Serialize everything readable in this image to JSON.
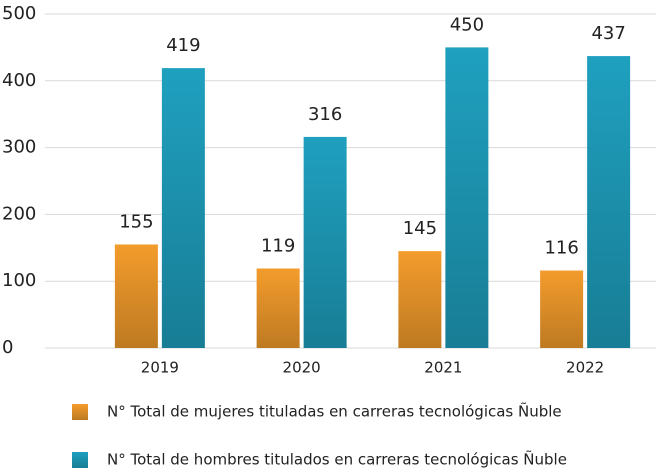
{
  "chart_data": {
    "type": "bar",
    "categories": [
      "2019",
      "2020",
      "2021",
      "2022"
    ],
    "series": [
      {
        "name": "N° Total de mujeres tituladas en carreras tecnológicas Ñuble",
        "color": "#f39c2c",
        "values": [
          155,
          119,
          145,
          116
        ]
      },
      {
        "name": "N° Total de hombres titulados en carreras tecnológicas Ñuble",
        "color": "#1fa0bf",
        "values": [
          419,
          316,
          450,
          437
        ]
      }
    ],
    "ylim": [
      0,
      500
    ],
    "yticks": [
      0,
      100,
      200,
      300,
      400,
      500
    ],
    "grid": true,
    "legend": "bottom"
  }
}
